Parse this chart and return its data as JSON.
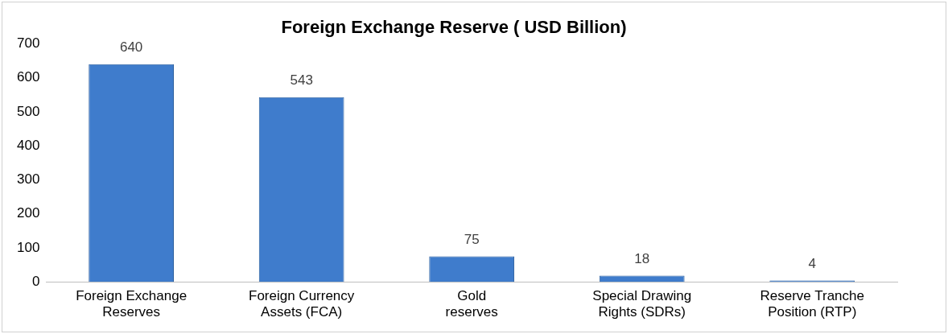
{
  "chart_data": {
    "type": "bar",
    "title": "Foreign Exchange Reserve ( USD Billion)",
    "categories": [
      "Foreign Exchange Reserves",
      "Foreign Currency Assets (FCA)",
      "Gold reserves",
      "Special Drawing Rights (SDRs)",
      "Reserve Tranche Position (RTP)"
    ],
    "values": [
      640,
      543,
      75,
      18,
      4
    ],
    "color": "#3f7ccc",
    "ylim": [
      0,
      700
    ],
    "yticks": [
      0,
      100,
      200,
      300,
      400,
      500,
      600,
      700
    ],
    "grid": false,
    "legend": false,
    "data_labels": true
  }
}
